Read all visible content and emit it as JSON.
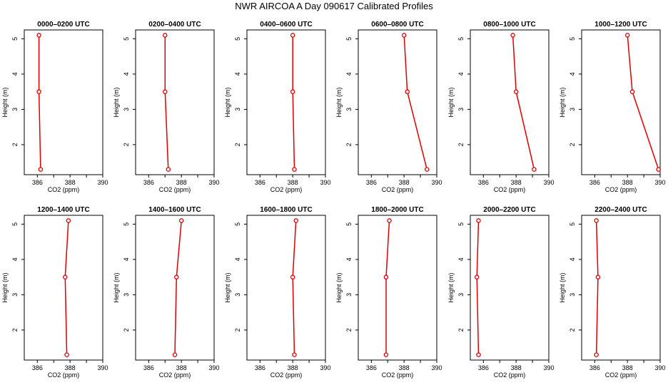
{
  "page": {
    "title": "NWR AIRCOA A  Day 090617  Calibrated Profiles"
  },
  "chart_data": [
    {
      "type": "line",
      "title": "0000–0200 UTC",
      "xlabel": "CO2 (ppm)",
      "ylabel": "Height (m)",
      "xlim": [
        385.2,
        390
      ],
      "ylim": [
        1.15,
        5.25
      ],
      "xticks": [
        386,
        388,
        390
      ],
      "yticks": [
        2,
        3,
        4,
        5
      ],
      "x": [
        386.2,
        386.1,
        386.1
      ],
      "y": [
        1.3,
        3.5,
        5.1
      ],
      "color": "#dd0000"
    },
    {
      "type": "line",
      "title": "0200–0400 UTC",
      "xlabel": "CO2 (ppm)",
      "ylabel": "Height (m)",
      "xlim": [
        385.2,
        390
      ],
      "ylim": [
        1.15,
        5.25
      ],
      "xticks": [
        386,
        388,
        390
      ],
      "yticks": [
        2,
        3,
        4,
        5
      ],
      "x": [
        387.2,
        387.0,
        387.0
      ],
      "y": [
        1.3,
        3.5,
        5.1
      ],
      "color": "#dd0000"
    },
    {
      "type": "line",
      "title": "0400–0600 UTC",
      "xlabel": "CO2 (ppm)",
      "ylabel": "Height (m)",
      "xlim": [
        385.2,
        390
      ],
      "ylim": [
        1.15,
        5.25
      ],
      "xticks": [
        386,
        388,
        390
      ],
      "yticks": [
        2,
        3,
        4,
        5
      ],
      "x": [
        388.1,
        388.0,
        388.0
      ],
      "y": [
        1.3,
        3.5,
        5.1
      ],
      "color": "#dd0000"
    },
    {
      "type": "line",
      "title": "0600–0800 UTC",
      "xlabel": "CO2 (ppm)",
      "ylabel": "Height (m)",
      "xlim": [
        385.2,
        390
      ],
      "ylim": [
        1.15,
        5.25
      ],
      "xticks": [
        386,
        388,
        390
      ],
      "yticks": [
        2,
        3,
        4,
        5
      ],
      "x": [
        389.4,
        388.2,
        388.0
      ],
      "y": [
        1.3,
        3.5,
        5.1
      ],
      "color": "#dd0000"
    },
    {
      "type": "line",
      "title": "0800–1000 UTC",
      "xlabel": "CO2 (ppm)",
      "ylabel": "Height (m)",
      "xlim": [
        385.2,
        390
      ],
      "ylim": [
        1.15,
        5.25
      ],
      "xticks": [
        386,
        388,
        390
      ],
      "yticks": [
        2,
        3,
        4,
        5
      ],
      "x": [
        389.1,
        388.0,
        387.8
      ],
      "y": [
        1.3,
        3.5,
        5.1
      ],
      "color": "#dd0000"
    },
    {
      "type": "line",
      "title": "1000–1200 UTC",
      "xlabel": "CO2 (ppm)",
      "ylabel": "Height (m)",
      "xlim": [
        385.2,
        390
      ],
      "ylim": [
        1.15,
        5.25
      ],
      "xticks": [
        386,
        388,
        390
      ],
      "yticks": [
        2,
        3,
        4,
        5
      ],
      "x": [
        389.9,
        388.3,
        388.0
      ],
      "y": [
        1.3,
        3.5,
        5.1
      ],
      "color": "#dd0000"
    },
    {
      "type": "line",
      "title": "1200–1400 UTC",
      "xlabel": "CO2 (ppm)",
      "ylabel": "Height (m)",
      "xlim": [
        385.2,
        390
      ],
      "ylim": [
        1.15,
        5.25
      ],
      "xticks": [
        386,
        388,
        390
      ],
      "yticks": [
        2,
        3,
        4,
        5
      ],
      "x": [
        387.8,
        387.7,
        387.9
      ],
      "y": [
        1.3,
        3.5,
        5.1
      ],
      "color": "#dd0000"
    },
    {
      "type": "line",
      "title": "1400–1600 UTC",
      "xlabel": "CO2 (ppm)",
      "ylabel": "Height (m)",
      "xlim": [
        385.2,
        390
      ],
      "ylim": [
        1.15,
        5.25
      ],
      "xticks": [
        386,
        388,
        390
      ],
      "yticks": [
        2,
        3,
        4,
        5
      ],
      "x": [
        387.6,
        387.7,
        388.0
      ],
      "y": [
        1.3,
        3.5,
        5.1
      ],
      "color": "#dd0000"
    },
    {
      "type": "line",
      "title": "1600–1800 UTC",
      "xlabel": "CO2 (ppm)",
      "ylabel": "Height (m)",
      "xlim": [
        385.2,
        390
      ],
      "ylim": [
        1.15,
        5.25
      ],
      "xticks": [
        386,
        388,
        390
      ],
      "yticks": [
        2,
        3,
        4,
        5
      ],
      "x": [
        388.1,
        388.0,
        388.2
      ],
      "y": [
        1.3,
        3.5,
        5.1
      ],
      "color": "#dd0000"
    },
    {
      "type": "line",
      "title": "1800–2000 UTC",
      "xlabel": "CO2 (ppm)",
      "ylabel": "Height (m)",
      "xlim": [
        385.2,
        390
      ],
      "ylim": [
        1.15,
        5.25
      ],
      "xticks": [
        386,
        388,
        390
      ],
      "yticks": [
        2,
        3,
        4,
        5
      ],
      "x": [
        386.9,
        386.9,
        387.1
      ],
      "y": [
        1.3,
        3.5,
        5.1
      ],
      "color": "#dd0000"
    },
    {
      "type": "line",
      "title": "2000–2200 UTC",
      "xlabel": "CO2 (ppm)",
      "ylabel": "Height (m)",
      "xlim": [
        385.2,
        390
      ],
      "ylim": [
        1.15,
        5.25
      ],
      "xticks": [
        386,
        388,
        390
      ],
      "yticks": [
        2,
        3,
        4,
        5
      ],
      "x": [
        385.7,
        385.6,
        385.7
      ],
      "y": [
        1.3,
        3.5,
        5.1
      ],
      "color": "#dd0000"
    },
    {
      "type": "line",
      "title": "2200–2400 UTC",
      "xlabel": "CO2 (ppm)",
      "ylabel": "Height (m)",
      "xlim": [
        385.2,
        390
      ],
      "ylim": [
        1.15,
        5.25
      ],
      "xticks": [
        386,
        388,
        390
      ],
      "yticks": [
        2,
        3,
        4,
        5
      ],
      "x": [
        386.1,
        386.2,
        386.1
      ],
      "y": [
        1.3,
        3.5,
        5.1
      ],
      "color": "#dd0000"
    }
  ]
}
